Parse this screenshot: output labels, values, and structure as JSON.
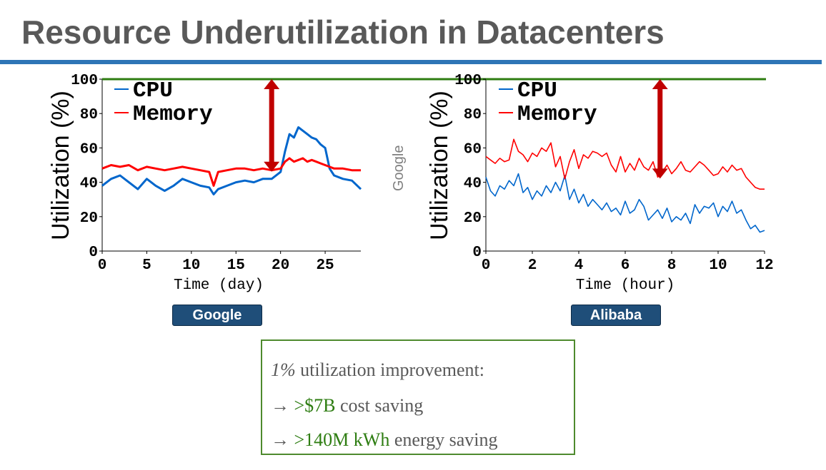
{
  "title": "Resource Underutilization in Datacenters",
  "colors": {
    "cpu": "#0066cc",
    "memory": "#ff0000",
    "capacity_line": "#2e7d12",
    "gap_arrow": "#c00000",
    "title_rule": "#2e75b6"
  },
  "side_label": "Google",
  "chart_data": [
    {
      "type": "line",
      "label": "Google",
      "ylabel": "Utilization (%)",
      "xlabel": "Time (day)",
      "ylim": [
        0,
        100
      ],
      "xlim": [
        0,
        29
      ],
      "xticks": [
        "0",
        "5",
        "10",
        "15",
        "20",
        "25"
      ],
      "yticks": [
        "0",
        "20",
        "40",
        "60",
        "80",
        "100"
      ],
      "reference_line": 100,
      "gap_arrow": {
        "x": 19,
        "from": 47,
        "to": 100
      },
      "legend": "top-left",
      "series": [
        {
          "name": "CPU",
          "x": [
            0,
            1,
            2,
            3,
            4,
            5,
            6,
            7,
            8,
            9,
            10,
            11,
            12,
            12.5,
            13,
            14,
            15,
            16,
            17,
            18,
            19,
            20,
            20.5,
            21,
            21.5,
            22,
            22.5,
            23,
            23.5,
            24,
            24.5,
            25,
            25.5,
            26,
            27,
            28,
            29
          ],
          "values": [
            38,
            42,
            44,
            40,
            36,
            42,
            38,
            35,
            38,
            42,
            40,
            38,
            37,
            33,
            36,
            38,
            40,
            41,
            40,
            42,
            42,
            46,
            58,
            68,
            66,
            72,
            70,
            68,
            66,
            65,
            62,
            60,
            48,
            44,
            42,
            41,
            36
          ]
        },
        {
          "name": "Memory",
          "x": [
            0,
            1,
            2,
            3,
            4,
            5,
            6,
            7,
            8,
            9,
            10,
            11,
            12,
            12.5,
            13,
            14,
            15,
            16,
            17,
            18,
            19,
            20,
            20.5,
            21,
            21.5,
            22,
            22.5,
            23,
            23.5,
            24,
            24.5,
            25,
            25.5,
            26,
            27,
            28,
            29
          ],
          "values": [
            48,
            50,
            49,
            50,
            47,
            49,
            48,
            47,
            48,
            49,
            48,
            47,
            46,
            38,
            46,
            47,
            48,
            48,
            47,
            48,
            47,
            48,
            52,
            54,
            52,
            53,
            54,
            52,
            53,
            52,
            51,
            50,
            49,
            48,
            48,
            47,
            47
          ]
        }
      ]
    },
    {
      "type": "line",
      "label": "Alibaba",
      "ylabel": "Utilization (%)",
      "xlabel": "Time (hour)",
      "ylim": [
        0,
        100
      ],
      "xlim": [
        0,
        12
      ],
      "xticks": [
        "0",
        "2",
        "4",
        "6",
        "8",
        "10",
        "12"
      ],
      "yticks": [
        "0",
        "20",
        "40",
        "60",
        "80",
        "100"
      ],
      "reference_line": 100,
      "gap_arrow": {
        "x": 7.5,
        "from": 43,
        "to": 100
      },
      "legend": "top-left",
      "series": [
        {
          "name": "CPU",
          "x": [
            0,
            0.2,
            0.4,
            0.6,
            0.8,
            1.0,
            1.2,
            1.4,
            1.6,
            1.8,
            2.0,
            2.2,
            2.4,
            2.6,
            2.8,
            3.0,
            3.2,
            3.4,
            3.6,
            3.8,
            4.0,
            4.2,
            4.4,
            4.6,
            4.8,
            5.0,
            5.2,
            5.4,
            5.6,
            5.8,
            6.0,
            6.2,
            6.4,
            6.6,
            6.8,
            7.0,
            7.2,
            7.4,
            7.6,
            7.8,
            8.0,
            8.2,
            8.4,
            8.6,
            8.8,
            9.0,
            9.2,
            9.4,
            9.6,
            9.8,
            10.0,
            10.2,
            10.4,
            10.6,
            10.8,
            11.0,
            11.2,
            11.4,
            11.6,
            11.8,
            12.0
          ],
          "values": [
            43,
            35,
            32,
            38,
            36,
            41,
            38,
            45,
            34,
            37,
            30,
            35,
            32,
            38,
            34,
            40,
            35,
            44,
            30,
            36,
            28,
            33,
            26,
            30,
            27,
            24,
            28,
            23,
            25,
            21,
            29,
            22,
            24,
            30,
            26,
            18,
            21,
            24,
            19,
            25,
            17,
            20,
            18,
            22,
            16,
            27,
            22,
            26,
            25,
            28,
            20,
            26,
            23,
            29,
            22,
            24,
            18,
            13,
            15,
            11,
            12
          ]
        },
        {
          "name": "Memory",
          "x": [
            0,
            0.2,
            0.4,
            0.6,
            0.8,
            1.0,
            1.2,
            1.4,
            1.6,
            1.8,
            2.0,
            2.2,
            2.4,
            2.6,
            2.8,
            3.0,
            3.2,
            3.4,
            3.6,
            3.8,
            4.0,
            4.2,
            4.4,
            4.6,
            4.8,
            5.0,
            5.2,
            5.4,
            5.6,
            5.8,
            6.0,
            6.2,
            6.4,
            6.6,
            6.8,
            7.0,
            7.2,
            7.4,
            7.6,
            7.8,
            8.0,
            8.2,
            8.4,
            8.6,
            8.8,
            9.0,
            9.2,
            9.4,
            9.6,
            9.8,
            10.0,
            10.2,
            10.4,
            10.6,
            10.8,
            11.0,
            11.2,
            11.4,
            11.6,
            11.8,
            12.0
          ],
          "values": [
            55,
            53,
            51,
            54,
            52,
            53,
            65,
            58,
            56,
            52,
            57,
            55,
            60,
            58,
            63,
            49,
            55,
            42,
            52,
            59,
            48,
            56,
            54,
            58,
            57,
            55,
            57,
            50,
            46,
            55,
            46,
            51,
            47,
            54,
            49,
            47,
            52,
            43,
            46,
            50,
            45,
            48,
            52,
            47,
            46,
            49,
            52,
            50,
            47,
            44,
            45,
            49,
            46,
            50,
            47,
            48,
            43,
            40,
            37,
            36,
            36
          ]
        }
      ]
    }
  ],
  "callout": {
    "line1_pct": "1%",
    "line1_text": " utilization improvement:",
    "line2_arrow": "→",
    "line2_value": ">$7B",
    "line2_text": " cost saving",
    "line3_arrow": "→",
    "line3_value": ">140M kWh",
    "line3_text": " energy saving"
  }
}
